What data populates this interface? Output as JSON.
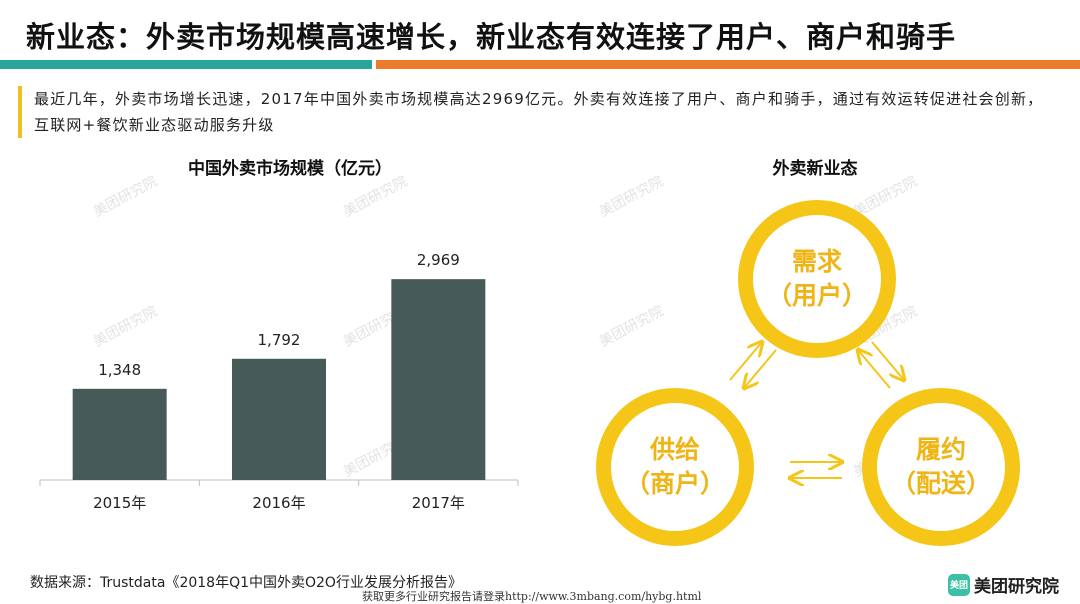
{
  "header": {
    "title": "新业态：外卖市场规模高速增长，新业态有效连接了用户、商户和骑手"
  },
  "intro": {
    "text": "最近几年，外卖市场增长迅速，2017年中国外卖市场规模高达2969亿元。外卖有效连接了用户、商户和骑手，通过有效运转促进社会创新，互联网+餐饮新业态驱动服务升级"
  },
  "chart_data": {
    "type": "bar",
    "title": "中国外卖市场规模（亿元）",
    "categories": [
      "2015年",
      "2016年",
      "2017年"
    ],
    "values": [
      1348,
      1792,
      2969
    ],
    "value_labels": [
      "1,348",
      "1,792",
      "2,969"
    ],
    "xlabel": "",
    "ylabel": "",
    "ylim": [
      0,
      3400
    ],
    "grid": false,
    "bar_color": "#465a58"
  },
  "diagram": {
    "title": "外卖新业态",
    "nodes": {
      "top": [
        "需求",
        "（用户）"
      ],
      "left": [
        "供给",
        "（商户）"
      ],
      "right": [
        "履约",
        "（配送）"
      ]
    },
    "colors": {
      "ring": "#f5c518",
      "text": "#efb416"
    }
  },
  "footer": {
    "source": "数据来源：Trustdata《2018年Q1中国外卖O2O行业发展分析报告》",
    "note": "获取更多行业研究报告请登录http://www.3mbang.com/hybg.html",
    "brand_logo": "美团",
    "brand_name": "美团研究院"
  },
  "watermark": "美团研究院",
  "colors": {
    "teal": "#2aa59a",
    "orange": "#ee7a2e",
    "accent": "#f2c01e"
  }
}
